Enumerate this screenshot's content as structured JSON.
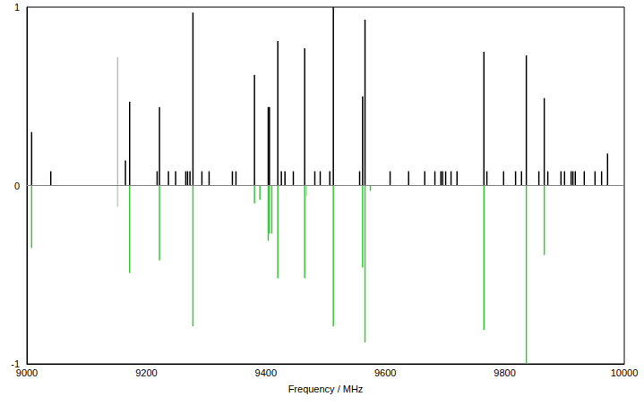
{
  "chart_data": {
    "type": "bar",
    "x_label": "Frequency / MHz",
    "xlim": [
      9000,
      10000
    ],
    "xticks": [
      9000,
      9200,
      9400,
      9600,
      9800,
      10000
    ],
    "ylim": [
      -1,
      1
    ],
    "yticks": [
      -1,
      0,
      1
    ],
    "grid": false,
    "series": [
      {
        "color": "#000000",
        "x": [
          9008,
          9040,
          9165,
          9172,
          9218,
          9222,
          9237,
          9249,
          9266,
          9269,
          9273,
          9278,
          9293,
          9305,
          9344,
          9350,
          9381,
          9404,
          9406,
          9420,
          9426,
          9432,
          9446,
          9465,
          9482,
          9491,
          9507,
          9513,
          9557,
          9562,
          9566,
          9608,
          9639,
          9666,
          9683,
          9693,
          9696,
          9701,
          9710,
          9720,
          9765,
          9770,
          9798,
          9818,
          9828,
          9836,
          9857,
          9866,
          9872,
          9894,
          9900,
          9911,
          9914,
          9918,
          9933,
          9951,
          9962,
          9972
        ],
        "values": [
          0.3,
          0.08,
          0.14,
          0.47,
          0.08,
          0.44,
          0.08,
          0.08,
          0.08,
          0.08,
          0.08,
          0.97,
          0.08,
          0.08,
          0.08,
          0.08,
          0.62,
          0.44,
          0.44,
          0.81,
          0.08,
          0.08,
          0.08,
          0.77,
          0.08,
          0.08,
          0.08,
          1.0,
          0.08,
          0.5,
          0.93,
          0.08,
          0.08,
          0.08,
          0.08,
          0.08,
          0.08,
          0.08,
          0.08,
          0.08,
          0.75,
          0.08,
          0.08,
          0.08,
          0.08,
          0.73,
          0.08,
          0.49,
          0.08,
          0.08,
          0.08,
          0.08,
          0.08,
          0.08,
          0.08,
          0.08,
          0.08,
          0.18
        ]
      },
      {
        "color": "#bbbbbb",
        "x": [
          9152
        ],
        "values": [
          0.72
        ]
      },
      {
        "color": "#33cc33",
        "x": [
          9008,
          9172,
          9222,
          9278,
          9381,
          9390,
          9404,
          9406,
          9410,
          9420,
          9465,
          9513,
          9562,
          9566,
          9575,
          9765,
          9836,
          9866
        ],
        "values": [
          -0.35,
          -0.49,
          -0.42,
          -0.79,
          -0.1,
          -0.08,
          -0.31,
          -0.27,
          -0.27,
          -0.52,
          -0.52,
          -0.79,
          -0.46,
          -0.88,
          -0.03,
          -0.81,
          -1.0,
          -0.39
        ]
      },
      {
        "color": "#aaddaa",
        "x": [
          9152,
          9468
        ],
        "values": [
          -0.12,
          -0.06
        ]
      }
    ]
  }
}
